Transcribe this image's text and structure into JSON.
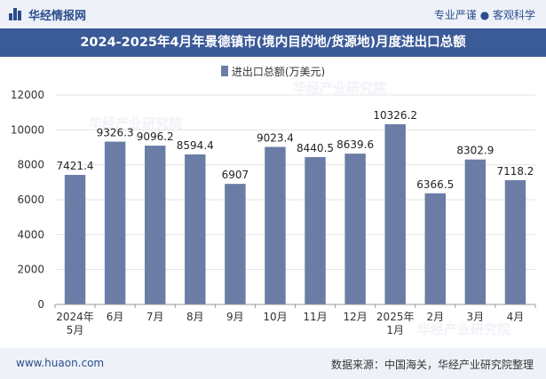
{
  "header": {
    "brand": "华经情报网",
    "tagline": "专业严谨 ● 客观科学"
  },
  "chart_data": {
    "type": "bar",
    "title": "2024-2025年4月年景德镇市(境内目的地/货源地)月度进出口总额",
    "legend_label": "进出口总额(万美元)",
    "categories": [
      [
        "2024年",
        "5月"
      ],
      [
        "6月"
      ],
      [
        "7月"
      ],
      [
        "8月"
      ],
      [
        "9月"
      ],
      [
        "10月"
      ],
      [
        "11月"
      ],
      [
        "12月"
      ],
      [
        "2025年",
        "1月"
      ],
      [
        "2月"
      ],
      [
        "3月"
      ],
      [
        "4月"
      ]
    ],
    "values": [
      7421.4,
      9326.3,
      9096.2,
      8594.4,
      6907,
      9023.4,
      8440.5,
      8639.6,
      10326.2,
      6366.5,
      8302.9,
      7118.2
    ],
    "value_labels": [
      "7421.4",
      "9326.3",
      "9096.2",
      "8594.4",
      "6907",
      "9023.4",
      "8440.5",
      "8639.6",
      "10326.2",
      "6366.5",
      "8302.9",
      "7118.2"
    ],
    "yticks": [
      0,
      2000,
      4000,
      6000,
      8000,
      10000,
      12000
    ],
    "ylim": [
      0,
      12000
    ],
    "bar_color": "#6b7da6",
    "grid": true,
    "legend_position": "top-center"
  },
  "watermark": "华经产业研究院",
  "footer": {
    "website": "www.huaon.com",
    "source": "数据来源：中国海关，华经产业研究院整理"
  }
}
